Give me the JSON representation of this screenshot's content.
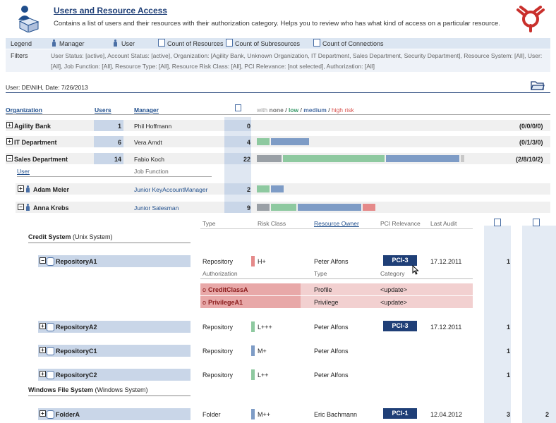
{
  "header": {
    "title": "Users and Resource Access",
    "description": "Contains a list of users and their resources with their authorization category. Helps you to review who has what kind of access on a particular resource."
  },
  "legend": {
    "label": "Legend",
    "items": [
      "Manager",
      "User",
      "Count of Resources",
      "Count of Subresources",
      "Count of Connections"
    ]
  },
  "filters": {
    "label": "Filters",
    "line1": "User Status: [active],   Account Status: [active],   Organization: [Agility Bank, Unknown Organization, IT Department, Sales Department, Security Department],   Resource System: [All],   User:",
    "line2": "[All],   Job Function: [All],   Resource Type: [All],   Resource Risk Class: [All],   PCI Relevance: [not selected],   Authorization: [All]"
  },
  "user_date": "User: DE\\NIH, Date: 7/26/2013",
  "columns": {
    "organization": "Organization",
    "users": "Users",
    "manager": "Manager",
    "risk_with": "with",
    "risk_none": "none",
    "risk_low": "low",
    "risk_medium": "medium",
    "risk_high": "high risk",
    "sep": "/"
  },
  "orgs": [
    {
      "name": "Agility Bank",
      "users": "1",
      "manager": "Phil Hoffmann",
      "count": "0",
      "summary": "(0/0/0/0)"
    },
    {
      "name": "IT Department",
      "users": "6",
      "manager": "Vera Arndt",
      "count": "4",
      "summary": "(0/1/3/0)"
    },
    {
      "name": "Sales Department",
      "users": "14",
      "manager": "Fabio Koch",
      "count": "22",
      "summary": "(2/8/10/2)"
    }
  ],
  "user_cols": {
    "user": "User",
    "job": "Job Function"
  },
  "users": [
    {
      "name": "Adam Meier",
      "job": "Junior KeyAccountManager",
      "count": "2"
    },
    {
      "name": "Anna Krebs",
      "job": "Junior Salesman",
      "count": "9"
    }
  ],
  "res_cols": {
    "type": "Type",
    "risk": "Risk Class",
    "owner": "Resource Owner",
    "pci": "PCI Relevance",
    "audit": "Last Audit"
  },
  "systems": [
    {
      "name": "Credit System",
      "kind": "(Unix System)"
    },
    {
      "name": "Windows File System",
      "kind": "(Windows System)"
    }
  ],
  "resources": [
    {
      "name": "RepositoryA1",
      "type": "Repository",
      "risk": "H+",
      "owner": "Peter Alfons",
      "pci": "PCI-3",
      "audit": "17.12.2011",
      "count": "1",
      "count2": ""
    },
    {
      "name": "RepositoryA2",
      "type": "Repository",
      "risk": "L+++",
      "owner": "Peter Alfons",
      "pci": "PCI-3",
      "audit": "17.12.2011",
      "count": "1",
      "count2": ""
    },
    {
      "name": "RepositoryC1",
      "type": "Repository",
      "risk": "M+",
      "owner": "Peter Alfons",
      "pci": "",
      "audit": "",
      "count": "1",
      "count2": ""
    },
    {
      "name": "RepositoryC2",
      "type": "Repository",
      "risk": "L++",
      "owner": "Peter Alfons",
      "pci": "",
      "audit": "",
      "count": "1",
      "count2": ""
    },
    {
      "name": "FolderA",
      "type": "Folder",
      "risk": "M++",
      "owner": "Eric Bachmann",
      "pci": "PCI-1",
      "audit": "12.04.2012",
      "count": "3",
      "count2": "2"
    }
  ],
  "auth_cols": {
    "auth": "Authorization",
    "type": "Type",
    "category": "Category"
  },
  "auths": [
    {
      "name": "CreditClassA",
      "type": "Profile",
      "category": "<update>"
    },
    {
      "name": "PrivilegeA1",
      "type": "Privilege",
      "category": "<update>"
    }
  ],
  "colors": {
    "accent": "#1f3f77",
    "users_col": "#c9d6e8",
    "auth_row": "#f2c4c4",
    "high_risk": "#e58a8a"
  }
}
